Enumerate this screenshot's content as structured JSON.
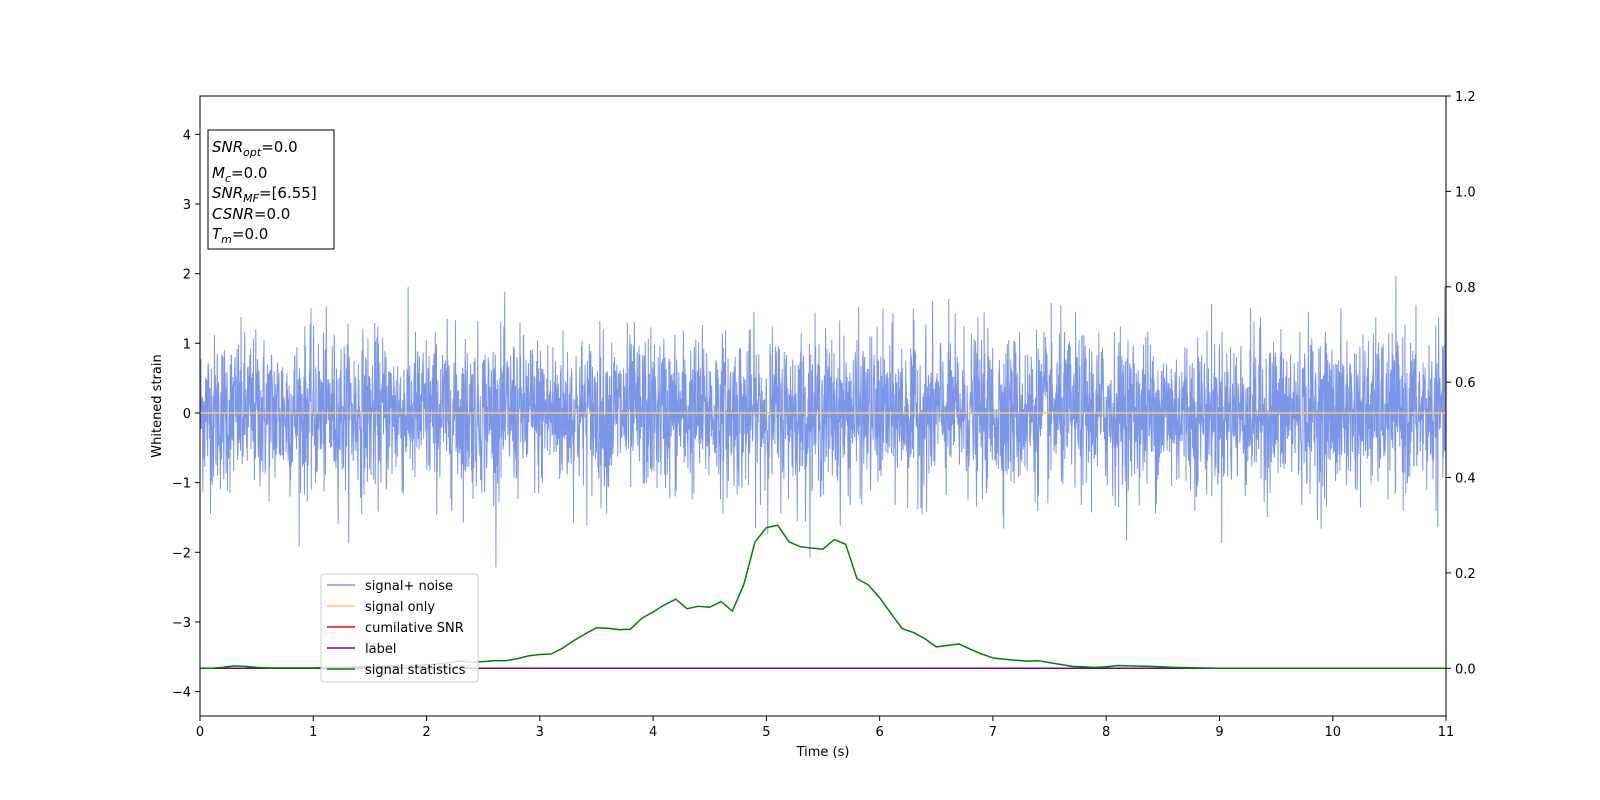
{
  "chart_data": {
    "type": "line",
    "xlabel": "Time (s)",
    "ylabel": "Whitened strain",
    "xlim": [
      0,
      11
    ],
    "ylim_left": [
      -4.35,
      4.55
    ],
    "ylim_right": [
      -0.1,
      1.2
    ],
    "x_ticks": [
      "0",
      "1",
      "2",
      "3",
      "4",
      "5",
      "6",
      "7",
      "8",
      "9",
      "10",
      "11"
    ],
    "y_ticks_left": [
      "−4",
      "−3",
      "−2",
      "−1",
      "0",
      "1",
      "2",
      "3",
      "4"
    ],
    "y_ticks_right": [
      "0.0",
      "0.2",
      "0.4",
      "0.6",
      "0.8",
      "1.0",
      "1.2"
    ],
    "grid": false,
    "legend_position": "lower-left",
    "info_box": {
      "snr_opt": {
        "var": "SNR",
        "sub": "opt",
        "value": "=0.0"
      },
      "mc": {
        "var": "M",
        "sub": "c",
        "value": "=0.0"
      },
      "snr_mf": {
        "var": "SNR",
        "sub": "MF",
        "value": "=[6.55]"
      },
      "csnr": {
        "var": "CSNR",
        "sub": "",
        "value": "=0.0"
      },
      "tm": {
        "var": "T",
        "sub": "m",
        "value": "=0.0"
      }
    },
    "series": [
      {
        "name": "signal+ noise",
        "axis": "left",
        "color": "#7b96e8",
        "kind": "noise",
        "std": 0.55,
        "duration": 11,
        "samples": 4400
      },
      {
        "name": "signal only",
        "axis": "left",
        "color": "#ffc66d",
        "x": [
          0,
          11
        ],
        "y": [
          0,
          0
        ]
      },
      {
        "name": "cumilative SNR",
        "axis": "right",
        "color": "#ff0000",
        "x": [
          0,
          11
        ],
        "y": [
          0,
          0
        ]
      },
      {
        "name": "label",
        "axis": "right",
        "color": "#800080",
        "x": [
          0,
          11
        ],
        "y": [
          0,
          0
        ]
      },
      {
        "name": "signal statistics",
        "axis": "right",
        "color": "#008000",
        "x": [
          0,
          0.1,
          0.2,
          0.3,
          0.4,
          0.5,
          0.6,
          0.8,
          1.0,
          1.2,
          1.4,
          1.6,
          1.8,
          2.0,
          2.1,
          2.2,
          2.3,
          2.4,
          2.5,
          2.6,
          2.7,
          2.8,
          2.9,
          3.0,
          3.1,
          3.2,
          3.3,
          3.4,
          3.5,
          3.6,
          3.7,
          3.8,
          3.9,
          4.0,
          4.1,
          4.2,
          4.3,
          4.4,
          4.5,
          4.6,
          4.7,
          4.8,
          4.9,
          5.0,
          5.1,
          5.2,
          5.3,
          5.4,
          5.5,
          5.6,
          5.7,
          5.8,
          5.9,
          6.0,
          6.1,
          6.2,
          6.3,
          6.4,
          6.5,
          6.6,
          6.7,
          6.8,
          6.9,
          7.0,
          7.1,
          7.2,
          7.3,
          7.4,
          7.5,
          7.6,
          7.7,
          7.8,
          7.9,
          8.0,
          8.1,
          8.2,
          8.4,
          8.6,
          8.8,
          9.0,
          9.5,
          10.0,
          10.5,
          11.0
        ],
        "y": [
          0.0,
          0.0,
          0.002,
          0.005,
          0.004,
          0.002,
          0.001,
          0.001,
          0.001,
          0.002,
          0.003,
          0.004,
          0.006,
          0.007,
          0.009,
          0.012,
          0.015,
          0.013,
          0.014,
          0.016,
          0.016,
          0.02,
          0.026,
          0.029,
          0.03,
          0.042,
          0.058,
          0.072,
          0.085,
          0.084,
          0.081,
          0.082,
          0.105,
          0.118,
          0.133,
          0.145,
          0.125,
          0.13,
          0.128,
          0.14,
          0.12,
          0.175,
          0.265,
          0.295,
          0.3,
          0.265,
          0.255,
          0.252,
          0.25,
          0.27,
          0.26,
          0.188,
          0.175,
          0.148,
          0.115,
          0.083,
          0.075,
          0.062,
          0.045,
          0.048,
          0.051,
          0.04,
          0.03,
          0.022,
          0.019,
          0.017,
          0.015,
          0.016,
          0.012,
          0.008,
          0.004,
          0.003,
          0.002,
          0.003,
          0.006,
          0.005,
          0.004,
          0.002,
          0.001,
          0.0,
          0.0,
          0.0,
          0.0,
          0.0
        ]
      }
    ]
  }
}
